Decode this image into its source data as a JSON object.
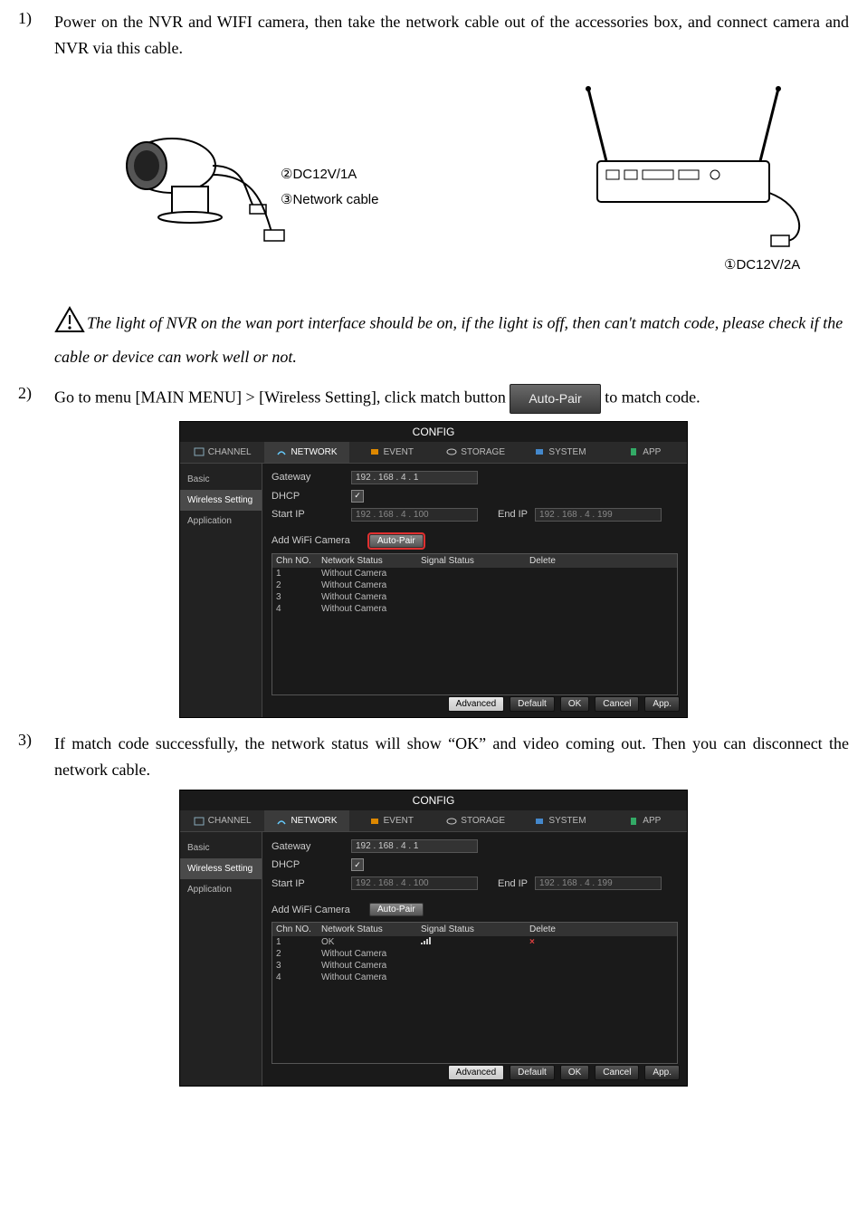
{
  "steps": {
    "s1_num": "1)",
    "s1_text": "Power on the NVR and WIFI camera, then take the network cable out of the accessories box, and connect camera and NVR via this cable.",
    "s2_num": "2)",
    "s2_text_a": "Go to menu [MAIN MENU] > [Wireless Setting], click match button ",
    "s2_text_b": "to match code.",
    "s3_num": "3)",
    "s3_text": "If match code successfully, the network status will show “OK” and video coming out. Then you can disconnect the network cable."
  },
  "diagram": {
    "l1": "②DC12V/1A",
    "l2": "③Network cable",
    "l3": "①DC12V/2A"
  },
  "warning": "The light of NVR on the wan port interface should be on, if the light is off, then can't match code, please check if the cable or device can work well or not.",
  "inline_btn": "Auto-Pair",
  "config": {
    "title": "CONFIG",
    "tabs": [
      "CHANNEL",
      "NETWORK",
      "EVENT",
      "STORAGE",
      "SYSTEM",
      "APP"
    ],
    "side": [
      "Basic",
      "Wireless Setting",
      "Application"
    ],
    "labels": {
      "gateway": "Gateway",
      "dhcp": "DHCP",
      "startip": "Start IP",
      "endip": "End IP",
      "addwifi": "Add WiFi Camera"
    },
    "ips": {
      "gateway": "192 . 168 .  4  .  1",
      "start": "192 . 168 .  4  . 100",
      "end": "192 . 168 .  4  . 199"
    },
    "autopair": "Auto-Pair",
    "thead": [
      "Chn NO.",
      "Network Status",
      "Signal Status",
      "Delete"
    ],
    "rows1": [
      {
        "n": "1",
        "s": "Without Camera"
      },
      {
        "n": "2",
        "s": "Without Camera"
      },
      {
        "n": "3",
        "s": "Without Camera"
      },
      {
        "n": "4",
        "s": "Without Camera"
      }
    ],
    "rows2": [
      {
        "n": "1",
        "s": "OK",
        "sig": true,
        "del": true
      },
      {
        "n": "2",
        "s": "Without Camera"
      },
      {
        "n": "3",
        "s": "Without Camera"
      },
      {
        "n": "4",
        "s": "Without Camera"
      }
    ],
    "footer": [
      "Advanced",
      "Default",
      "OK",
      "Cancel",
      "App."
    ]
  },
  "colors": {
    "highlight": "#e03030",
    "bg_dark": "#1a1a1a"
  }
}
